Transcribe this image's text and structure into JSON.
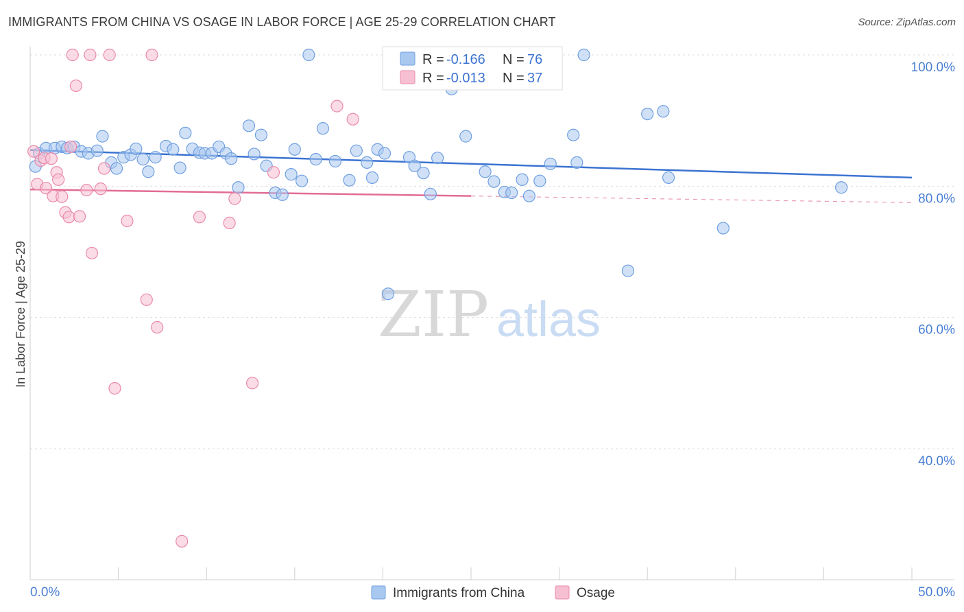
{
  "title": "IMMIGRANTS FROM CHINA VS OSAGE IN LABOR FORCE | AGE 25-29 CORRELATION CHART",
  "source": "Source: ZipAtlas.com",
  "watermark": {
    "zip": "ZIP",
    "atlas": "atlas"
  },
  "legend_box": {
    "rows": [
      {
        "r_label": "R =",
        "r_value": "-0.166",
        "n_label": "N =",
        "n_value": "76",
        "color": "#a9c8f0",
        "stroke": "#6f9fe0"
      },
      {
        "r_label": "R =",
        "r_value": "-0.013",
        "n_label": "N =",
        "n_value": "37",
        "color": "#f7c0d2",
        "stroke": "#e98aaa"
      }
    ]
  },
  "bottom_legend": [
    {
      "label": "Immigrants from China",
      "color": "#a9c8f0",
      "stroke": "#6f9fe0"
    },
    {
      "label": "Osage",
      "color": "#f7c0d2",
      "stroke": "#e98aaa"
    }
  ],
  "chart_data": {
    "type": "scatter",
    "ylabel": "In Labor Force | Age 25-29",
    "xlabel": "",
    "xlim": [
      0,
      50
    ],
    "ylim": [
      22,
      103
    ],
    "x_tick_labels": [
      {
        "value": 0,
        "label": "0.0%"
      },
      {
        "value": 50,
        "label": "50.0%"
      }
    ],
    "y_tick_labels": [
      {
        "value": 100,
        "label": "100.0%"
      },
      {
        "value": 80,
        "label": "80.0%"
      },
      {
        "value": 60,
        "label": "60.0%"
      },
      {
        "value": 40,
        "label": "40.0%"
      }
    ],
    "gridlines_y": [
      100,
      80,
      60,
      40
    ],
    "x_minor_ticks": [
      0,
      5,
      10,
      15,
      20,
      25,
      30,
      35,
      40,
      45,
      50
    ],
    "series": [
      {
        "name": "Immigrants from China",
        "color": "#6f9fe0",
        "fill": "#a9c8f0",
        "trend": {
          "x0": 0,
          "y0": 85.5,
          "x1": 50,
          "y1": 81.3,
          "solid_until": 50
        },
        "points": [
          [
            0.3,
            83
          ],
          [
            0.5,
            85
          ],
          [
            0.9,
            85.8
          ],
          [
            1.4,
            85.8
          ],
          [
            1.8,
            86
          ],
          [
            2.1,
            85.8
          ],
          [
            2.5,
            86
          ],
          [
            2.9,
            85.3
          ],
          [
            3.3,
            85
          ],
          [
            3.8,
            85.4
          ],
          [
            4.1,
            87.6
          ],
          [
            4.6,
            83.6
          ],
          [
            4.9,
            82.7
          ],
          [
            5.3,
            84.4
          ],
          [
            5.7,
            84.8
          ],
          [
            6.0,
            85.7
          ],
          [
            6.4,
            84.1
          ],
          [
            6.7,
            82.2
          ],
          [
            7.1,
            84.4
          ],
          [
            7.7,
            86.1
          ],
          [
            8.1,
            85.6
          ],
          [
            8.5,
            82.8
          ],
          [
            8.8,
            88.1
          ],
          [
            9.2,
            85.7
          ],
          [
            9.6,
            85.1
          ],
          [
            9.9,
            85
          ],
          [
            10.3,
            85
          ],
          [
            10.7,
            86
          ],
          [
            11.1,
            85
          ],
          [
            11.4,
            84.2
          ],
          [
            11.8,
            79.8
          ],
          [
            12.4,
            89.2
          ],
          [
            12.7,
            84.9
          ],
          [
            13.1,
            87.8
          ],
          [
            13.4,
            83.1
          ],
          [
            13.9,
            79
          ],
          [
            14.3,
            78.7
          ],
          [
            14.8,
            81.8
          ],
          [
            15.0,
            85.6
          ],
          [
            15.4,
            80.8
          ],
          [
            16.2,
            84.1
          ],
          [
            16.6,
            88.8
          ],
          [
            17.3,
            83.8
          ],
          [
            18.1,
            80.9
          ],
          [
            18.5,
            85.4
          ],
          [
            19.1,
            83.6
          ],
          [
            19.4,
            81.3
          ],
          [
            19.7,
            85.6
          ],
          [
            20.1,
            85
          ],
          [
            20.3,
            63.6
          ],
          [
            21.5,
            84.4
          ],
          [
            21.8,
            83.1
          ],
          [
            22.3,
            82
          ],
          [
            22.7,
            78.8
          ],
          [
            23.1,
            84.3
          ],
          [
            23.9,
            94.8
          ],
          [
            24.7,
            87.6
          ],
          [
            25.8,
            82.2
          ],
          [
            26.3,
            80.7
          ],
          [
            26.9,
            79.1
          ],
          [
            27.3,
            79
          ],
          [
            27.9,
            81
          ],
          [
            28.3,
            78.5
          ],
          [
            28.9,
            80.8
          ],
          [
            29.5,
            83.4
          ],
          [
            30.8,
            87.8
          ],
          [
            31.0,
            83.6
          ],
          [
            31.4,
            100
          ],
          [
            33.9,
            67.1
          ],
          [
            35.0,
            91
          ],
          [
            35.9,
            91.4
          ],
          [
            36.2,
            81.3
          ],
          [
            39.3,
            73.6
          ],
          [
            46.0,
            79.8
          ],
          [
            15.8,
            100
          ],
          [
            23.2,
            96.8
          ]
        ]
      },
      {
        "name": "Osage",
        "color": "#e98aaa",
        "fill": "#f7c0d2",
        "trend": {
          "x0": 0,
          "y0": 79.5,
          "x1": 50,
          "y1": 77.5,
          "solid_until": 25
        },
        "points": [
          [
            0.2,
            85.3
          ],
          [
            0.4,
            80.3
          ],
          [
            0.6,
            83.9
          ],
          [
            0.8,
            84.3
          ],
          [
            0.9,
            79.7
          ],
          [
            1.2,
            84.2
          ],
          [
            1.3,
            78.5
          ],
          [
            1.5,
            82.1
          ],
          [
            1.6,
            81
          ],
          [
            1.8,
            78.4
          ],
          [
            2.0,
            76
          ],
          [
            2.2,
            75.3
          ],
          [
            2.3,
            86
          ],
          [
            2.4,
            100
          ],
          [
            2.6,
            95.3
          ],
          [
            2.8,
            75.4
          ],
          [
            3.2,
            79.4
          ],
          [
            3.4,
            100
          ],
          [
            3.5,
            69.8
          ],
          [
            4.0,
            79.6
          ],
          [
            4.2,
            82.7
          ],
          [
            4.5,
            100
          ],
          [
            4.8,
            49.2
          ],
          [
            5.5,
            74.7
          ],
          [
            6.6,
            62.7
          ],
          [
            6.9,
            100
          ],
          [
            7.2,
            58.5
          ],
          [
            8.6,
            25.9
          ],
          [
            9.6,
            75.3
          ],
          [
            11.3,
            74.4
          ],
          [
            11.6,
            78.1
          ],
          [
            12.6,
            50
          ],
          [
            13.8,
            82.1
          ],
          [
            17.4,
            92.2
          ],
          [
            18.3,
            90.2
          ],
          [
            21.3,
            100
          ],
          [
            22.6,
            98.5
          ]
        ]
      }
    ]
  }
}
